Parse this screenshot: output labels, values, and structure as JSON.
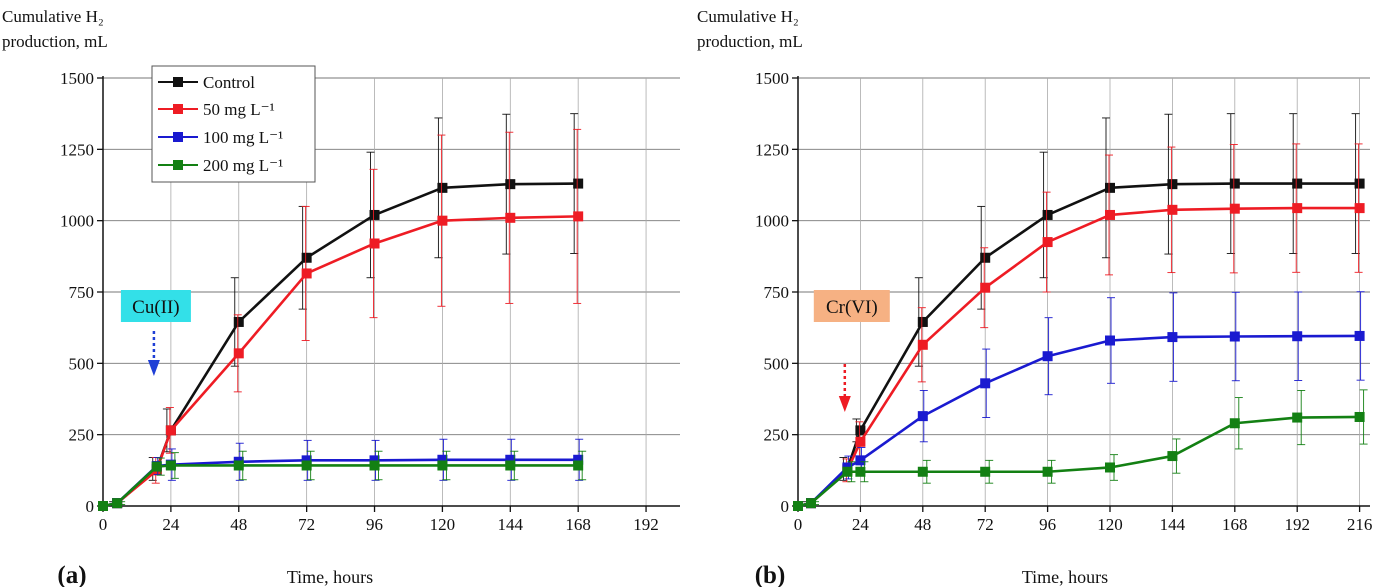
{
  "chart_data": [
    {
      "type": "line",
      "panel_label": "(a)",
      "ylabel": "Cumulative H₂ production, mL",
      "ylabel_lines": [
        "Cumulative H₂",
        "production, mL"
      ],
      "xlabel": "Time, hours",
      "xlim": [
        0,
        204
      ],
      "ylim": [
        0,
        1500
      ],
      "xticks": [
        0,
        24,
        48,
        72,
        96,
        120,
        144,
        168,
        192
      ],
      "yticks": [
        0,
        250,
        500,
        750,
        1000,
        1250,
        1500
      ],
      "grid": true,
      "legend_position": "top-left",
      "annotation": {
        "text": "Cu(II)",
        "x": 18,
        "color": "#33e0e8",
        "arrow_color": "#1f3fd6"
      },
      "series": [
        {
          "name": "Control",
          "color": "#111111",
          "x": [
            0,
            5,
            19,
            24,
            48,
            72,
            96,
            120,
            144,
            168
          ],
          "y": [
            0,
            10,
            130,
            265,
            645,
            870,
            1020,
            1115,
            1128,
            1130
          ],
          "err": [
            0,
            5,
            40,
            75,
            155,
            180,
            220,
            245,
            245,
            245
          ]
        },
        {
          "name": "50 mg L⁻¹",
          "color": "#ee1c24",
          "x": [
            0,
            5,
            19,
            24,
            48,
            72,
            96,
            120,
            144,
            168
          ],
          "y": [
            0,
            10,
            125,
            265,
            535,
            815,
            920,
            1000,
            1010,
            1015
          ],
          "err": [
            0,
            5,
            45,
            80,
            135,
            235,
            260,
            300,
            300,
            305
          ]
        },
        {
          "name": "100 mg L⁻¹",
          "color": "#1a1ad0",
          "x": [
            0,
            5,
            19,
            24,
            48,
            72,
            96,
            120,
            144,
            168
          ],
          "y": [
            0,
            10,
            140,
            145,
            155,
            160,
            160,
            162,
            162,
            162
          ],
          "err": [
            0,
            5,
            30,
            55,
            65,
            70,
            70,
            72,
            72,
            72
          ]
        },
        {
          "name": "200 mg L⁻¹",
          "color": "#138013",
          "x": [
            0,
            5,
            19,
            24,
            48,
            72,
            96,
            120,
            144,
            168
          ],
          "y": [
            0,
            10,
            138,
            142,
            142,
            142,
            142,
            142,
            142,
            142
          ],
          "err": [
            0,
            5,
            30,
            45,
            50,
            50,
            50,
            50,
            50,
            50
          ]
        }
      ]
    },
    {
      "type": "line",
      "panel_label": "(b)",
      "ylabel": "Cumulative H₂ production, mL",
      "ylabel_lines": [
        "Cumulative H₂",
        "production, mL"
      ],
      "xlabel": "Time, hours",
      "xlim": [
        0,
        220
      ],
      "ylim": [
        0,
        1500
      ],
      "xticks": [
        0,
        24,
        48,
        72,
        96,
        120,
        144,
        168,
        192,
        216
      ],
      "yticks": [
        0,
        250,
        500,
        750,
        1000,
        1250,
        1500
      ],
      "grid": true,
      "annotation": {
        "text": "Cr(VI)",
        "x": 18,
        "color": "#f6b183",
        "arrow_color": "#ee1c24"
      },
      "series": [
        {
          "name": "Control",
          "color": "#111111",
          "x": [
            0,
            5,
            19,
            24,
            48,
            72,
            96,
            120,
            144,
            168,
            192,
            216
          ],
          "y": [
            0,
            10,
            130,
            265,
            645,
            870,
            1020,
            1115,
            1128,
            1130,
            1130,
            1130
          ],
          "err": [
            0,
            5,
            40,
            40,
            155,
            180,
            220,
            245,
            245,
            245,
            245,
            245
          ]
        },
        {
          "name": "50 mg L⁻¹",
          "color": "#ee1c24",
          "x": [
            0,
            5,
            19,
            24,
            48,
            72,
            96,
            120,
            144,
            168,
            192,
            216
          ],
          "y": [
            0,
            10,
            125,
            225,
            565,
            765,
            925,
            1020,
            1038,
            1042,
            1044,
            1044
          ],
          "err": [
            0,
            5,
            40,
            70,
            130,
            140,
            175,
            210,
            220,
            225,
            225,
            225
          ]
        },
        {
          "name": "100 mg L⁻¹",
          "color": "#1a1ad0",
          "x": [
            0,
            5,
            19,
            24,
            48,
            72,
            96,
            120,
            144,
            168,
            192,
            216
          ],
          "y": [
            0,
            10,
            135,
            160,
            315,
            430,
            525,
            580,
            592,
            594,
            595,
            596
          ],
          "err": [
            0,
            5,
            40,
            45,
            90,
            120,
            135,
            150,
            155,
            155,
            155,
            155
          ]
        },
        {
          "name": "200 mg L⁻¹",
          "color": "#138013",
          "x": [
            0,
            5,
            19,
            24,
            48,
            72,
            96,
            120,
            144,
            168,
            192,
            216
          ],
          "y": [
            0,
            10,
            120,
            120,
            120,
            120,
            120,
            135,
            175,
            290,
            310,
            312
          ],
          "err": [
            0,
            5,
            35,
            35,
            40,
            40,
            40,
            45,
            60,
            90,
            95,
            95
          ]
        }
      ]
    }
  ]
}
